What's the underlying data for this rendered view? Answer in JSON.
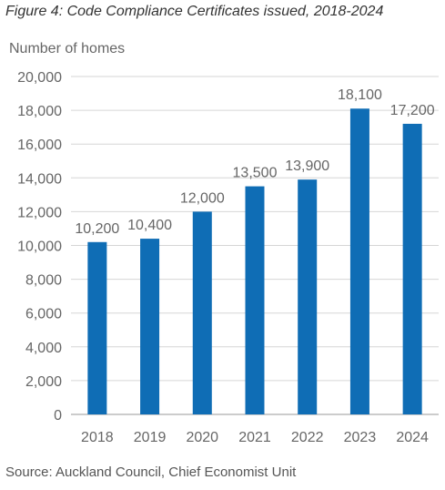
{
  "figure": {
    "title": "Figure 4: Code Compliance Certificates issued, 2018-2024",
    "source": "Source: Auckland Council, Chief Economist Unit"
  },
  "chart_data": {
    "type": "bar",
    "title": "Figure 4: Code Compliance Certificates issued, 2018-2024",
    "xlabel": "",
    "ylabel": "Number of homes",
    "categories": [
      "2018",
      "2019",
      "2020",
      "2021",
      "2022",
      "2023",
      "2024"
    ],
    "values": [
      10200,
      10400,
      12000,
      13500,
      13900,
      18100,
      17200
    ],
    "data_labels": [
      "10,200",
      "10,400",
      "12,000",
      "13,500",
      "13,900",
      "18,100",
      "17,200"
    ],
    "ylim": [
      0,
      20000
    ],
    "yticks": [
      0,
      2000,
      4000,
      6000,
      8000,
      10000,
      12000,
      14000,
      16000,
      18000,
      20000
    ],
    "ytick_labels": [
      "0",
      "2,000",
      "4,000",
      "6,000",
      "8,000",
      "10,000",
      "12,000",
      "14,000",
      "16,000",
      "18,000",
      "20,000"
    ],
    "grid": true,
    "legend": "none",
    "colors": {
      "bar": "#0f6db5",
      "grid": "#d6d6d6",
      "text": "#666666",
      "axis": "#999999"
    }
  }
}
